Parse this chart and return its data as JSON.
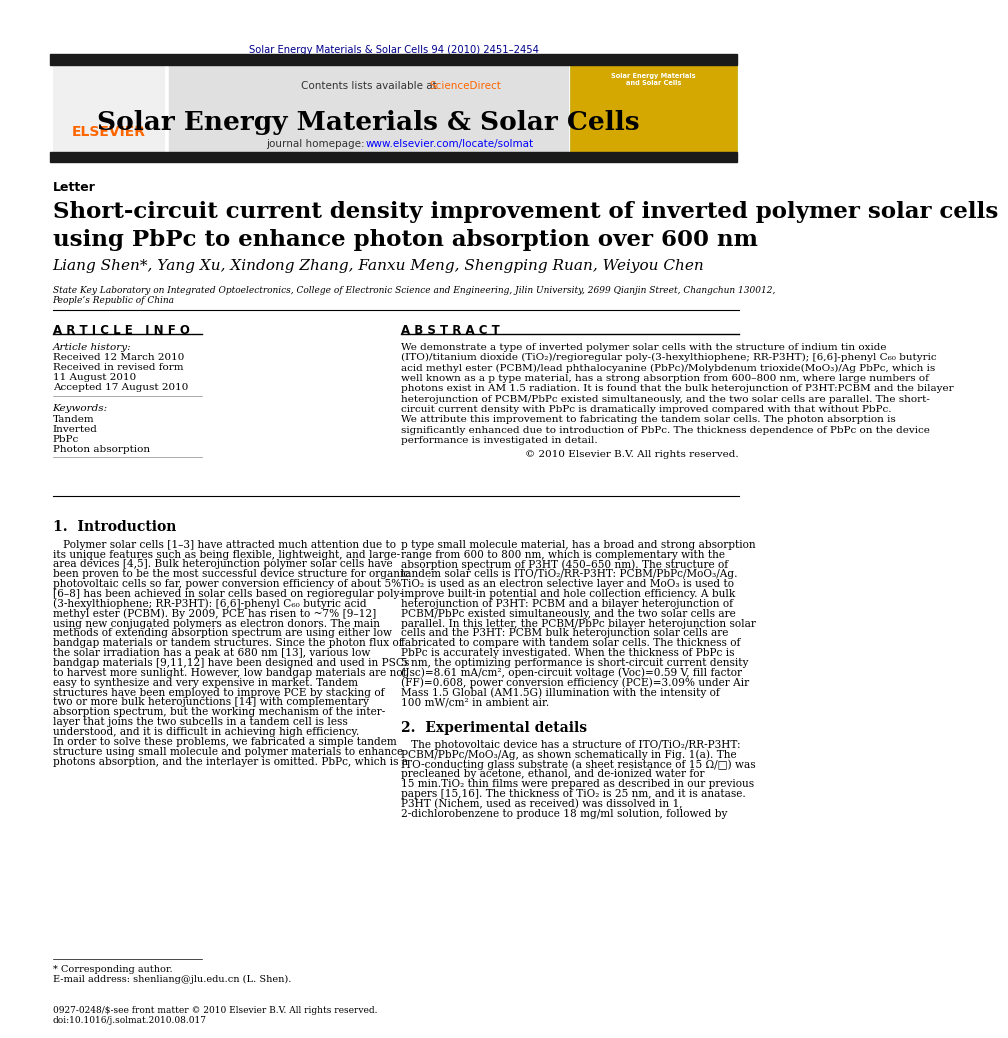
{
  "page_width": 9.92,
  "page_height": 13.23,
  "background_color": "#ffffff",
  "header_citation": "Solar Energy Materials & Solar Cells 94 (2010) 2451–2454",
  "header_citation_color": "#00008B",
  "journal_banner_bg": "#e8e8e8",
  "journal_title": "Solar Energy Materials & Solar Cells",
  "journal_url_color": "#0000FF",
  "contents_text": "Contents lists available at ",
  "sciencedirect_text": "ScienceDirect",
  "sciencedirect_color": "#FF6600",
  "article_type": "Letter",
  "paper_title_line1": "Short-circuit current density improvement of inverted polymer solar cells",
  "paper_title_line2": "using PbPc to enhance photon absorption over 600 nm",
  "authors": "Liang Shen*, Yang Xu, Xindong Zhang, Fanxu Meng, Shengping Ruan, Weiyou Chen",
  "affiliation_line1": "State Key Laboratory on Integrated Optoelectronics, College of Electronic Science and Engineering, Jilin University, 2699 Qianjin Street, Changchun 130012,",
  "affiliation_line2": "People’s Republic of China",
  "article_info_header": "A R T I C L E   I N F O",
  "abstract_header": "A B S T R A C T",
  "article_history_label": "Article history:",
  "received_label": "Received 12 March 2010",
  "revised_label": "Received in revised form",
  "revised_date": "11 August 2010",
  "accepted_label": "Accepted 17 August 2010",
  "keywords_label": "Keywords:",
  "keyword1": "Tandem",
  "keyword2": "Inverted",
  "keyword3": "PbPc",
  "keyword4": "Photon absorption",
  "copyright_text": "© 2010 Elsevier B.V. All rights reserved.",
  "section1_header": "1.  Introduction",
  "section2_header": "2.  Experimental details",
  "footnote_star": "* Corresponding author.",
  "footnote_email": "E-mail address: shenliang@jlu.edu.cn (L. Shen).",
  "bottom_text1": "0927-0248/$-see front matter © 2010 Elsevier B.V. All rights reserved.",
  "bottom_text2": "doi:10.1016/j.solmat.2010.08.017",
  "elsevier_color": "#FF6600",
  "black_bar_color": "#1a1a1a",
  "text_color": "#000000",
  "link_blue": "#0000FF",
  "header_bg": "#e0e0e0",
  "abstract_lines": [
    "We demonstrate a type of inverted polymer solar cells with the structure of indium tin oxide",
    "(ITO)/titanium dioxide (TiO₂)/regioregular poly-(3-hexylthiophene; RR-P3HT); [6,6]-phenyl C₆₀ butyric",
    "acid methyl ester (PCBM)/lead phthalocyanine (PbPc)/Molybdenum trioxide(MoO₃)/Ag PbPc, which is",
    "well known as a p type material, has a strong absorption from 600–800 nm, where large numbers of",
    "photons exist in AM 1.5 radiation. It is found that the bulk heterojunction of P3HT:PCBM and the bilayer",
    "heterojunction of PCBM/PbPc existed simultaneously, and the two solar cells are parallel. The short-",
    "circuit current density with PbPc is dramatically improved compared with that without PbPc.",
    "We attribute this improvement to fabricating the tandem solar cells. The photon absorption is",
    "significantly enhanced due to introduction of PbPc. The thickness dependence of PbPc on the device",
    "performance is investigated in detail."
  ],
  "intro_left_lines": [
    "   Polymer solar cells [1–3] have attracted much attention due to",
    "its unique features such as being flexible, lightweight, and large-",
    "area devices [4,5]. Bulk heterojunction polymer solar cells have",
    "been proven to be the most successful device structure for organic",
    "photovoltaic cells so far, power conversion efficiency of about 5%",
    "[6–8] has been achieved in solar cells based on regioregular poly-",
    "(3-hexylthiophene; RR-P3HT): [6,6]-phenyl C₆₀ butyric acid",
    "methyl ester (PCBM). By 2009, PCE has risen to ~7% [9–12]",
    "using new conjugated polymers as electron donors. The main",
    "methods of extending absorption spectrum are using either low",
    "bandgap materials or tandem structures. Since the photon flux of",
    "the solar irradiation has a peak at 680 nm [13], various low",
    "bandgap materials [9,11,12] have been designed and used in PSCs",
    "to harvest more sunlight. However, low bandgap materials are not",
    "easy to synthesize and very expensive in market. Tandem",
    "structures have been employed to improve PCE by stacking of",
    "two or more bulk heterojunctions [14] with complementary",
    "absorption spectrum, but the working mechanism of the inter-",
    "layer that joins the two subcells in a tandem cell is less",
    "understood, and it is difficult in achieving high efficiency.",
    "In order to solve these problems, we fabricated a simple tandem",
    "structure using small molecule and polymer materials to enhance",
    "photons absorption, and the interlayer is omitted. PbPc, which is a"
  ],
  "intro_right_lines": [
    "p type small molecule material, has a broad and strong absorption",
    "range from 600 to 800 nm, which is complementary with the",
    "absorption spectrum of P3HT (450–650 nm). The structure of",
    "tandem solar cells is ITO/TiO₂/RR-P3HT: PCBM/PbPc/MoO₃/Ag.",
    "TiO₂ is used as an electron selective layer and MoO₃ is used to",
    "improve built-in potential and hole collection efficiency. A bulk",
    "heterojunction of P3HT: PCBM and a bilayer heterojunction of",
    "PCBM/PbPc existed simultaneously, and the two solar cells are",
    "parallel. In this letter, the PCBM/PbPc bilayer heterojunction solar",
    "cells and the P3HT: PCBM bulk heterojunction solar cells are",
    "fabricated to compare with tandem solar cells. The thickness of",
    "PbPc is accurately investigated. When the thickness of PbPc is",
    "5 nm, the optimizing performance is short-circuit current density",
    "(Jsc)=8.61 mA/cm², open-circuit voltage (Voc)=0.59 V, fill factor",
    "(FF)=0.608, power conversion efficiency (PCE)=3.09% under Air",
    "Mass 1.5 Global (AM1.5G) illumination with the intensity of",
    "100 mW/cm² in ambient air."
  ],
  "exp_lines": [
    "   The photovoltaic device has a structure of ITO/TiO₂/RR-P3HT:",
    "PCBM/PbPc/MoO₃/Ag, as shown schematically in Fig. 1(a). The",
    "ITO-conducting glass substrate (a sheet resistance of 15 Ω/□) was",
    "precleaned by acetone, ethanol, and de-ionized water for",
    "15 min.TiO₂ thin films were prepared as described in our previous",
    "papers [15,16]. The thickness of TiO₂ is 25 nm, and it is anatase.",
    "P3HT (Nichem, used as received) was dissolved in 1,",
    "2-dichlorobenzene to produce 18 mg/ml solution, followed by"
  ]
}
